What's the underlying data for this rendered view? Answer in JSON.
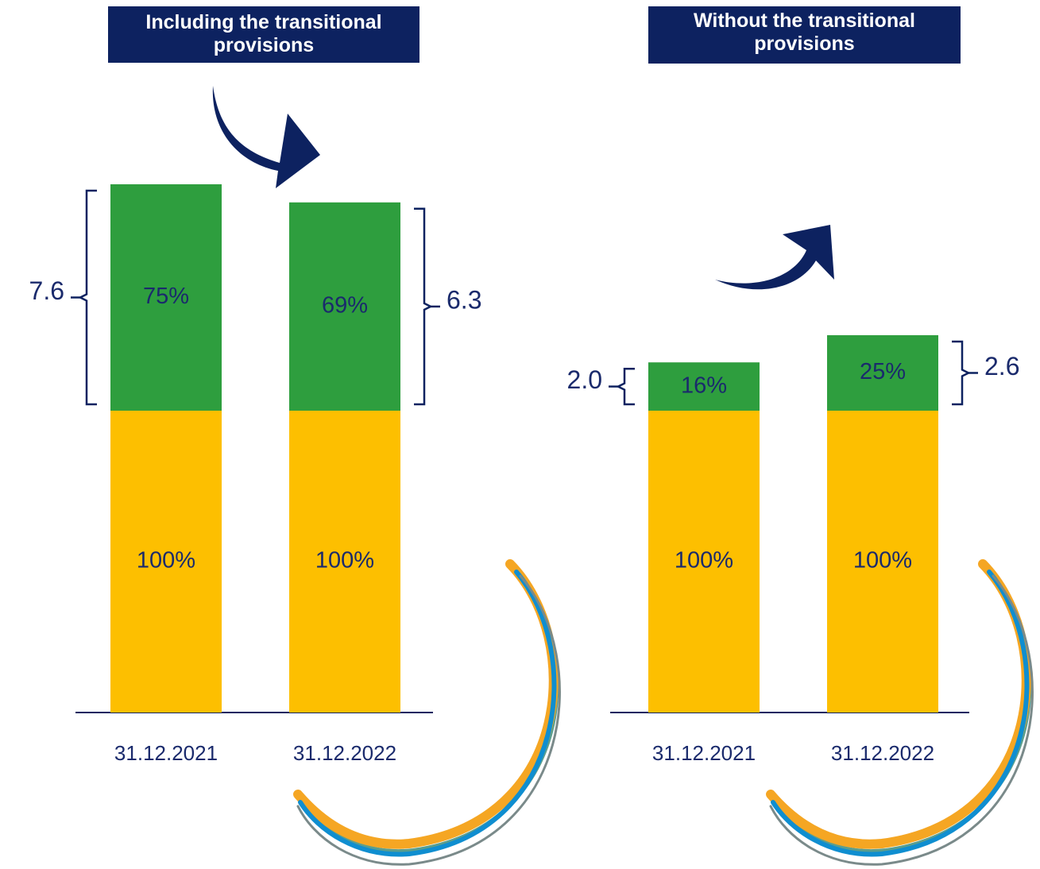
{
  "chart_data": [
    {
      "type": "bar",
      "stacked": true,
      "title": "Including the transitional provisions",
      "categories": [
        "31.12.2021",
        "31.12.2022"
      ],
      "series": [
        {
          "color": "#fdbf00",
          "values": [
            100,
            100
          ],
          "value_labels": [
            "100%",
            "100%"
          ]
        },
        {
          "color": "#2e9e3e",
          "values": [
            75,
            69
          ],
          "value_labels": [
            "75%",
            "69%"
          ]
        }
      ],
      "brackets": [
        7.6,
        6.3
      ]
    },
    {
      "type": "bar",
      "stacked": true,
      "title": "Without the transitional provisions",
      "categories": [
        "31.12.2021",
        "31.12.2022"
      ],
      "series": [
        {
          "color": "#fdbf00",
          "values": [
            100,
            100
          ],
          "value_labels": [
            "100%",
            "100%"
          ]
        },
        {
          "color": "#2e9e3e",
          "values": [
            16,
            25
          ],
          "value_labels": [
            "16%",
            "25%"
          ]
        }
      ],
      "brackets": [
        {
          "value": 2.0,
          "label": "2.0"
        },
        2.6
      ]
    }
  ]
}
